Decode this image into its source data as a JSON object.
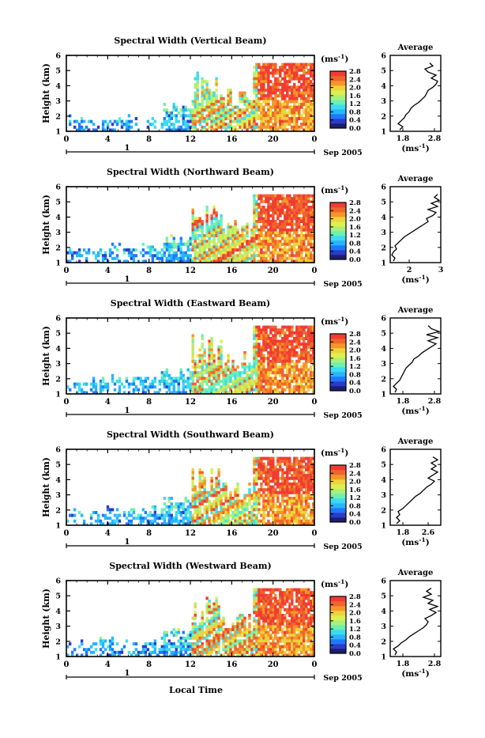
{
  "figure": {
    "xlabel": "Local Time",
    "date_label": "Sep 2005",
    "day_label": "1",
    "colorbar_unit_base": "(ms",
    "colorbar_unit_exp": "-1",
    "colorbar_unit_close": ")",
    "avg_title": "Average",
    "avg_unit_base": "(ms",
    "avg_unit_exp": "-1",
    "avg_unit_close": ")",
    "ylabel": "Height (km)"
  },
  "colorscale": [
    "#1e1e6e",
    "#2c3cc8",
    "#1e78ff",
    "#28b4ff",
    "#3cdcf0",
    "#6ef0b4",
    "#aaf078",
    "#dcf050",
    "#f0d23c",
    "#f59628",
    "#f0642d",
    "#f03c32"
  ],
  "chart_data": [
    {
      "type": "heatmap",
      "title": "Spectral Width (Vertical Beam)",
      "x_ticks": [
        "0",
        "4",
        "8",
        "12",
        "16",
        "20",
        "0"
      ],
      "x_range": [
        0,
        24
      ],
      "y_ticks": [
        "1",
        "2",
        "3",
        "4",
        "5",
        "6"
      ],
      "ylim": [
        1,
        6
      ],
      "colorbar_ticks": [
        "0.0",
        "0.4",
        "0.8",
        "1.2",
        "1.6",
        "2.0",
        "2.4",
        "2.8"
      ],
      "colorbar_range": [
        0.0,
        2.8
      ],
      "data_top_km": 5.5,
      "profile": {
        "x_ticks": [
          "1.8",
          "2.8"
        ],
        "xlim": [
          1.4,
          3.0
        ],
        "y_ticks": [
          "1",
          "2",
          "3",
          "4",
          "5",
          "6"
        ],
        "ylim": [
          1,
          6
        ],
        "height_km": [
          1.1,
          1.3,
          1.5,
          1.7,
          1.9,
          2.1,
          2.3,
          2.5,
          2.7,
          2.9,
          3.1,
          3.3,
          3.5,
          3.7,
          3.9,
          4.1,
          4.3,
          4.5,
          4.7,
          4.9,
          5.1,
          5.3,
          5.5
        ],
        "width": [
          1.7,
          1.8,
          1.65,
          1.75,
          1.85,
          1.9,
          2.0,
          2.05,
          2.15,
          2.3,
          2.4,
          2.5,
          2.55,
          2.6,
          2.75,
          2.85,
          2.9,
          2.7,
          2.85,
          2.6,
          2.5,
          2.75,
          2.65
        ]
      }
    },
    {
      "type": "heatmap",
      "title": "Spectral Width (Northward Beam)",
      "x_ticks": [
        "0",
        "4",
        "8",
        "12",
        "16",
        "20",
        "0"
      ],
      "x_range": [
        0,
        24
      ],
      "y_ticks": [
        "1",
        "2",
        "3",
        "4",
        "5",
        "6"
      ],
      "ylim": [
        1,
        6
      ],
      "colorbar_ticks": [
        "0.0",
        "0.4",
        "0.8",
        "1.2",
        "1.6",
        "2.0",
        "2.4",
        "2.8"
      ],
      "colorbar_range": [
        0.0,
        2.8
      ],
      "data_top_km": 5.5,
      "profile": {
        "x_ticks": [
          "2",
          "3"
        ],
        "xlim": [
          1.4,
          3.0
        ],
        "y_ticks": [
          "1",
          "2",
          "3",
          "4",
          "5",
          "6"
        ],
        "ylim": [
          1,
          6
        ],
        "height_km": [
          1.1,
          1.3,
          1.5,
          1.7,
          1.9,
          2.1,
          2.3,
          2.5,
          2.7,
          2.9,
          3.1,
          3.3,
          3.5,
          3.7,
          3.9,
          4.1,
          4.3,
          4.5,
          4.7,
          4.9,
          5.1,
          5.3,
          5.5
        ],
        "width": [
          1.5,
          1.55,
          1.45,
          1.5,
          1.6,
          1.55,
          1.65,
          1.75,
          1.85,
          2.0,
          2.15,
          2.3,
          2.45,
          2.6,
          2.55,
          2.75,
          2.85,
          2.6,
          2.9,
          2.7,
          2.95,
          2.8,
          2.9
        ]
      }
    },
    {
      "type": "heatmap",
      "title": "Spectral Width (Eastward Beam)",
      "x_ticks": [
        "0",
        "4",
        "8",
        "12",
        "16",
        "20",
        "0"
      ],
      "x_range": [
        0,
        24
      ],
      "y_ticks": [
        "1",
        "2",
        "3",
        "4",
        "5",
        "6"
      ],
      "ylim": [
        1,
        6
      ],
      "colorbar_ticks": [
        "0.0",
        "0.4",
        "0.8",
        "1.2",
        "1.6",
        "2.0",
        "2.4",
        "2.8"
      ],
      "colorbar_range": [
        0.0,
        2.8
      ],
      "data_top_km": 5.5,
      "profile": {
        "x_ticks": [
          "1.8",
          "2.8"
        ],
        "xlim": [
          1.4,
          3.0
        ],
        "y_ticks": [
          "1",
          "2",
          "3",
          "4",
          "5",
          "6"
        ],
        "ylim": [
          1,
          6
        ],
        "height_km": [
          1.1,
          1.3,
          1.5,
          1.7,
          1.9,
          2.1,
          2.3,
          2.5,
          2.7,
          2.9,
          3.1,
          3.3,
          3.5,
          3.7,
          3.9,
          4.1,
          4.3,
          4.5,
          4.7,
          4.9,
          5.1,
          5.3,
          5.5
        ],
        "width": [
          1.55,
          1.6,
          1.5,
          1.6,
          1.7,
          1.75,
          1.8,
          1.85,
          1.9,
          2.0,
          2.1,
          2.15,
          2.3,
          2.4,
          2.55,
          2.7,
          2.85,
          2.6,
          2.9,
          2.55,
          2.95,
          2.7,
          2.6
        ]
      }
    },
    {
      "type": "heatmap",
      "title": "Spectral Width (Southward Beam)",
      "x_ticks": [
        "0",
        "4",
        "8",
        "12",
        "16",
        "20",
        "0"
      ],
      "x_range": [
        0,
        24
      ],
      "y_ticks": [
        "1",
        "2",
        "3",
        "4",
        "5",
        "6"
      ],
      "ylim": [
        1,
        6
      ],
      "colorbar_ticks": [
        "0.0",
        "0.4",
        "0.8",
        "1.2",
        "1.6",
        "2.0",
        "2.4",
        "2.8"
      ],
      "colorbar_range": [
        0.0,
        2.8
      ],
      "data_top_km": 5.5,
      "profile": {
        "x_ticks": [
          "1.8",
          "2.6"
        ],
        "xlim": [
          1.4,
          3.0
        ],
        "y_ticks": [
          "1",
          "2",
          "3",
          "4",
          "5",
          "6"
        ],
        "ylim": [
          1,
          6
        ],
        "height_km": [
          1.1,
          1.3,
          1.5,
          1.7,
          1.9,
          2.1,
          2.3,
          2.5,
          2.7,
          2.9,
          3.1,
          3.3,
          3.5,
          3.7,
          3.9,
          4.1,
          4.3,
          4.5,
          4.7,
          4.9,
          5.1,
          5.3,
          5.5
        ],
        "width": [
          1.6,
          1.7,
          1.6,
          1.7,
          1.65,
          1.8,
          1.9,
          2.0,
          2.1,
          2.2,
          2.35,
          2.45,
          2.55,
          2.7,
          2.8,
          2.6,
          2.75,
          2.9,
          2.7,
          2.85,
          2.7,
          2.9,
          2.75
        ]
      }
    },
    {
      "type": "heatmap",
      "title": "Spectral Width (Westward Beam)",
      "x_ticks": [
        "0",
        "4",
        "8",
        "12",
        "16",
        "20",
        "0"
      ],
      "x_range": [
        0,
        24
      ],
      "y_ticks": [
        "1",
        "2",
        "3",
        "4",
        "5",
        "6"
      ],
      "ylim": [
        1,
        6
      ],
      "colorbar_ticks": [
        "0.0",
        "0.4",
        "0.8",
        "1.2",
        "1.6",
        "2.0",
        "2.4",
        "2.8"
      ],
      "colorbar_range": [
        0.0,
        2.8
      ],
      "data_top_km": 5.5,
      "profile": {
        "x_ticks": [
          "1.8",
          "2.8"
        ],
        "xlim": [
          1.4,
          3.0
        ],
        "y_ticks": [
          "1",
          "2",
          "3",
          "4",
          "5",
          "6"
        ],
        "ylim": [
          1,
          6
        ],
        "height_km": [
          1.1,
          1.3,
          1.5,
          1.7,
          1.9,
          2.1,
          2.3,
          2.5,
          2.7,
          2.9,
          3.1,
          3.3,
          3.5,
          3.7,
          3.9,
          4.1,
          4.3,
          4.5,
          4.7,
          4.9,
          5.1,
          5.3,
          5.5
        ],
        "width": [
          1.55,
          1.6,
          1.5,
          1.65,
          1.75,
          1.9,
          2.0,
          2.15,
          2.3,
          2.45,
          2.55,
          2.6,
          2.5,
          2.7,
          2.85,
          2.65,
          2.9,
          2.6,
          2.75,
          2.45,
          2.7,
          2.55,
          2.7
        ]
      }
    }
  ]
}
